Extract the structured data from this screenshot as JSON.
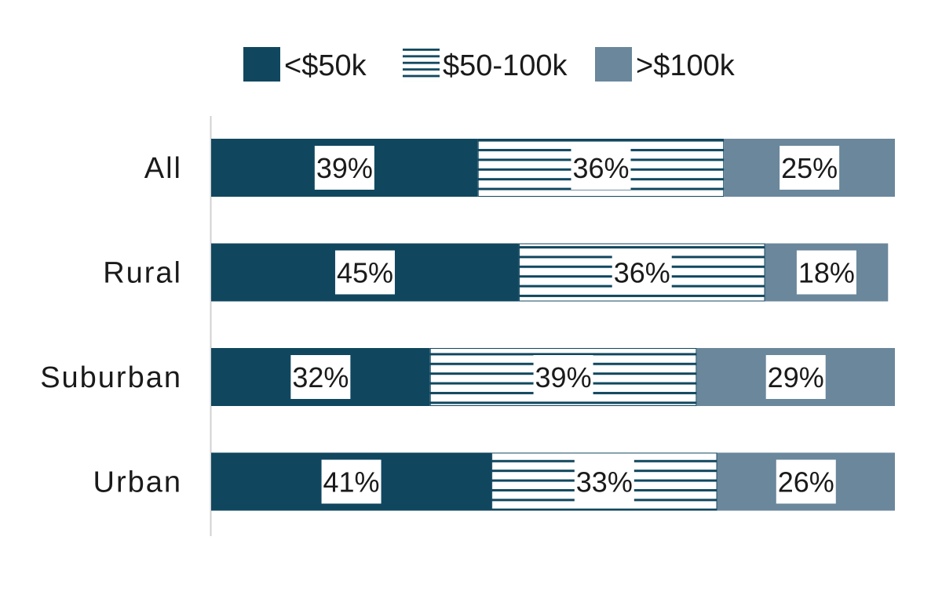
{
  "chart_data": {
    "type": "bar",
    "orientation": "horizontal",
    "stacked": true,
    "categories": [
      "All",
      "Rural",
      "Suburban",
      "Urban"
    ],
    "series": [
      {
        "name": "<$50k",
        "values": [
          39,
          45,
          32,
          41
        ],
        "labels": [
          "39%",
          "45%",
          "32%",
          "41%"
        ],
        "color": "#10475f",
        "pattern": "solid"
      },
      {
        "name": "$50-100k",
        "values": [
          36,
          36,
          39,
          33
        ],
        "labels": [
          "36%",
          "36%",
          "39%",
          "33%"
        ],
        "color": "#10475f",
        "pattern": "horizontal-stripes"
      },
      {
        "name": ">$100k",
        "values": [
          25,
          18,
          29,
          26
        ],
        "labels": [
          "25%",
          "18%",
          "29%",
          "26%"
        ],
        "color": "#6a879c",
        "pattern": "solid"
      }
    ],
    "xlim": [
      0,
      100
    ],
    "legend_position": "top",
    "grid": false
  }
}
